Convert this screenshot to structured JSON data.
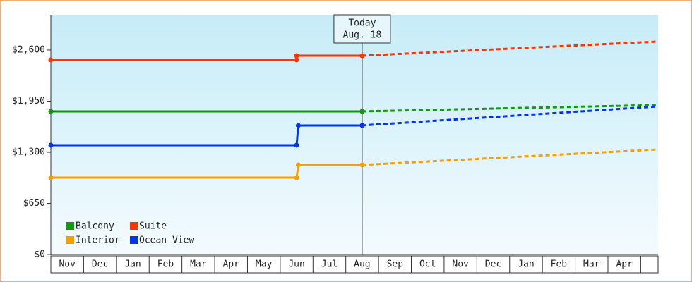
{
  "chart_data": {
    "type": "line",
    "categories": [
      "Nov",
      "Dec",
      "Jan",
      "Feb",
      "Mar",
      "Apr",
      "May",
      "Jun",
      "Jul",
      "Aug",
      "Sep",
      "Oct",
      "Nov",
      "Dec",
      "Jan",
      "Feb",
      "Mar",
      "Apr"
    ],
    "xlim": [
      0,
      18.53
    ],
    "ylim": [
      0,
      3048
    ],
    "yticks": [
      {
        "value": 0,
        "label": "$0"
      },
      {
        "value": 650,
        "label": "$650"
      },
      {
        "value": 1300,
        "label": "$1,300"
      },
      {
        "value": 1950,
        "label": "$1,950"
      },
      {
        "value": 2600,
        "label": "$2,600"
      }
    ],
    "annotation": {
      "text": "Today",
      "date": "Aug. 18",
      "x": 9.5
    },
    "series": [
      {
        "name": "Balcony",
        "color": "#119911",
        "x": [
          0,
          9.5,
          18.53
        ],
        "values": [
          1820,
          1820,
          1901
        ]
      },
      {
        "name": "Suite",
        "color": "#ff3300",
        "x": [
          0,
          7.5,
          7.5,
          9.5,
          18.53
        ],
        "values": [
          2475,
          2475,
          2528,
          2528,
          2708
        ]
      },
      {
        "name": "Interior",
        "color": "#f5a000",
        "x": [
          0,
          7.5,
          7.55,
          9.5,
          18.53
        ],
        "values": [
          977,
          977,
          1139,
          1139,
          1336
        ]
      },
      {
        "name": "Ocean View",
        "color": "#0033ee",
        "x": [
          0,
          7.5,
          7.55,
          9.5,
          18.53
        ],
        "values": [
          1390,
          1390,
          1641,
          1641,
          1883
        ]
      }
    ]
  }
}
